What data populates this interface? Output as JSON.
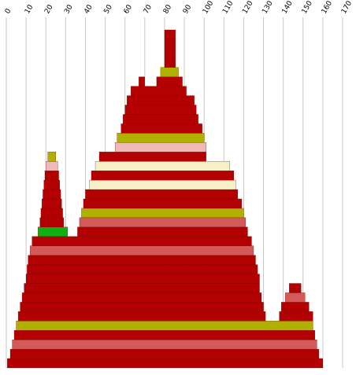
{
  "chart_data": {
    "type": "profile",
    "xlim": [
      0,
      170
    ],
    "xticks": [
      0,
      10,
      20,
      30,
      40,
      50,
      60,
      70,
      80,
      90,
      100,
      110,
      120,
      130,
      140,
      150,
      160,
      170
    ],
    "grid": true,
    "rows": [
      [
        {
          "start": 0.5,
          "end": 160,
          "color": "#b30000"
        }
      ],
      [
        {
          "start": 2,
          "end": 158,
          "color": "#b30000"
        }
      ],
      [
        {
          "start": 3,
          "end": 157,
          "color": "#d45a5a"
        }
      ],
      [
        {
          "start": 4,
          "end": 156,
          "color": "#b30000"
        }
      ],
      [
        {
          "start": 5,
          "end": 155,
          "color": "#b0b000"
        }
      ],
      [
        {
          "start": 6,
          "end": 131,
          "color": "#b30000"
        },
        {
          "start": 138,
          "end": 155,
          "color": "#b30000"
        }
      ],
      [
        {
          "start": 7,
          "end": 130,
          "color": "#b30000"
        },
        {
          "start": 139,
          "end": 153,
          "color": "#b30000"
        }
      ],
      [
        {
          "start": 8,
          "end": 129,
          "color": "#b30000"
        },
        {
          "start": 141,
          "end": 151,
          "color": "#d45a5a"
        }
      ],
      [
        {
          "start": 9,
          "end": 128,
          "color": "#b30000"
        },
        {
          "start": 143,
          "end": 149,
          "color": "#b30000"
        }
      ],
      [
        {
          "start": 10,
          "end": 128,
          "color": "#b30000"
        }
      ],
      [
        {
          "start": 10.5,
          "end": 127,
          "color": "#b30000"
        }
      ],
      [
        {
          "start": 11,
          "end": 126,
          "color": "#b30000"
        }
      ],
      [
        {
          "start": 12,
          "end": 125,
          "color": "#d45a5a"
        }
      ],
      [
        {
          "start": 13,
          "end": 124,
          "color": "#b30000"
        }
      ],
      [
        {
          "start": 16,
          "end": 31,
          "color": "#10b010"
        },
        {
          "start": 36,
          "end": 122,
          "color": "#b30000"
        }
      ],
      [
        {
          "start": 17,
          "end": 29,
          "color": "#b30000"
        },
        {
          "start": 37,
          "end": 121,
          "color": "#d45a5a"
        }
      ],
      [
        {
          "start": 17.5,
          "end": 28.5,
          "color": "#b30000"
        },
        {
          "start": 38,
          "end": 120,
          "color": "#b0b000"
        }
      ],
      [
        {
          "start": 18,
          "end": 28,
          "color": "#b30000"
        },
        {
          "start": 39,
          "end": 119,
          "color": "#b30000"
        }
      ],
      [
        {
          "start": 18.5,
          "end": 27.5,
          "color": "#b30000"
        },
        {
          "start": 40,
          "end": 117,
          "color": "#b30000"
        }
      ],
      [
        {
          "start": 19,
          "end": 27,
          "color": "#b30000"
        },
        {
          "start": 42,
          "end": 116,
          "color": "#f5f0c8"
        }
      ],
      [
        {
          "start": 19.5,
          "end": 26.5,
          "color": "#b30000"
        },
        {
          "start": 43,
          "end": 115,
          "color": "#b30000"
        }
      ],
      [
        {
          "start": 20,
          "end": 26,
          "color": "#f0b8b8"
        },
        {
          "start": 45,
          "end": 113,
          "color": "#f5f0c8"
        }
      ],
      [
        {
          "start": 21,
          "end": 25,
          "color": "#b0b000"
        },
        {
          "start": 47,
          "end": 101,
          "color": "#b30000"
        }
      ],
      [
        {
          "start": 55,
          "end": 101,
          "color": "#f0b8b8"
        }
      ],
      [
        {
          "start": 56,
          "end": 100,
          "color": "#b0b000"
        }
      ],
      [
        {
          "start": 58,
          "end": 99,
          "color": "#b30000"
        }
      ],
      [
        {
          "start": 59,
          "end": 97,
          "color": "#b30000"
        }
      ],
      [
        {
          "start": 60,
          "end": 96,
          "color": "#b30000"
        }
      ],
      [
        {
          "start": 61,
          "end": 95,
          "color": "#b30000"
        }
      ],
      [
        {
          "start": 63,
          "end": 91,
          "color": "#b30000"
        }
      ],
      [
        {
          "start": 67,
          "end": 70,
          "color": "#b30000"
        },
        {
          "start": 76,
          "end": 89,
          "color": "#b30000"
        }
      ],
      [
        {
          "start": 78,
          "end": 87,
          "color": "#b0b000"
        }
      ],
      [
        {
          "start": 80,
          "end": 85.5,
          "color": "#b30000"
        }
      ],
      [
        {
          "start": 80,
          "end": 85.5,
          "color": "#b30000"
        }
      ],
      [
        {
          "start": 80,
          "end": 85.5,
          "color": "#b30000"
        }
      ],
      [
        {
          "start": 80,
          "end": 85.5,
          "color": "#b30000"
        }
      ]
    ]
  }
}
